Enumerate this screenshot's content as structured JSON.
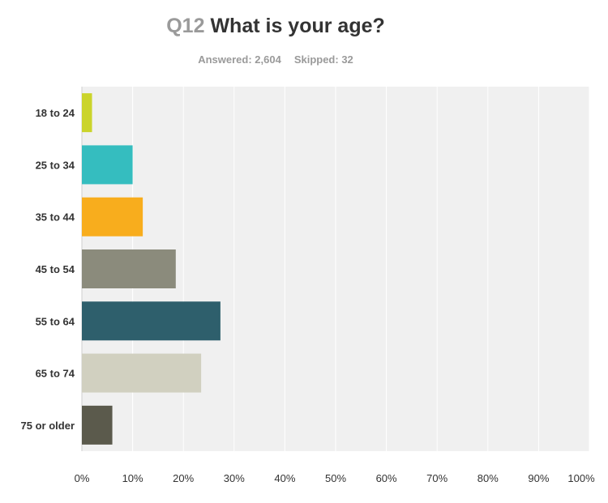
{
  "header": {
    "question_number": "Q12",
    "question_text": "What is your age?",
    "answered": "Answered: 2,604",
    "skipped": "Skipped: 32"
  },
  "chart_data": {
    "type": "bar",
    "orientation": "horizontal",
    "title": "Q12 What is your age?",
    "categories": [
      "18 to 24",
      "25 to 34",
      "35 to 44",
      "45 to 54",
      "55 to 64",
      "65 to 74",
      "75 or older"
    ],
    "values": [
      2,
      10,
      12,
      18.5,
      27.3,
      23.5,
      6
    ],
    "colors": [
      "#cbd42b",
      "#35bdbf",
      "#f8ad1d",
      "#8b8b7c",
      "#2e5f6c",
      "#d1d0c0",
      "#5b5a4c"
    ],
    "xlim": [
      0,
      100
    ],
    "x_ticks": [
      "0%",
      "10%",
      "20%",
      "30%",
      "40%",
      "50%",
      "60%",
      "70%",
      "80%",
      "90%",
      "100%"
    ],
    "grid": true,
    "plot_background": "#f0f0f0"
  }
}
